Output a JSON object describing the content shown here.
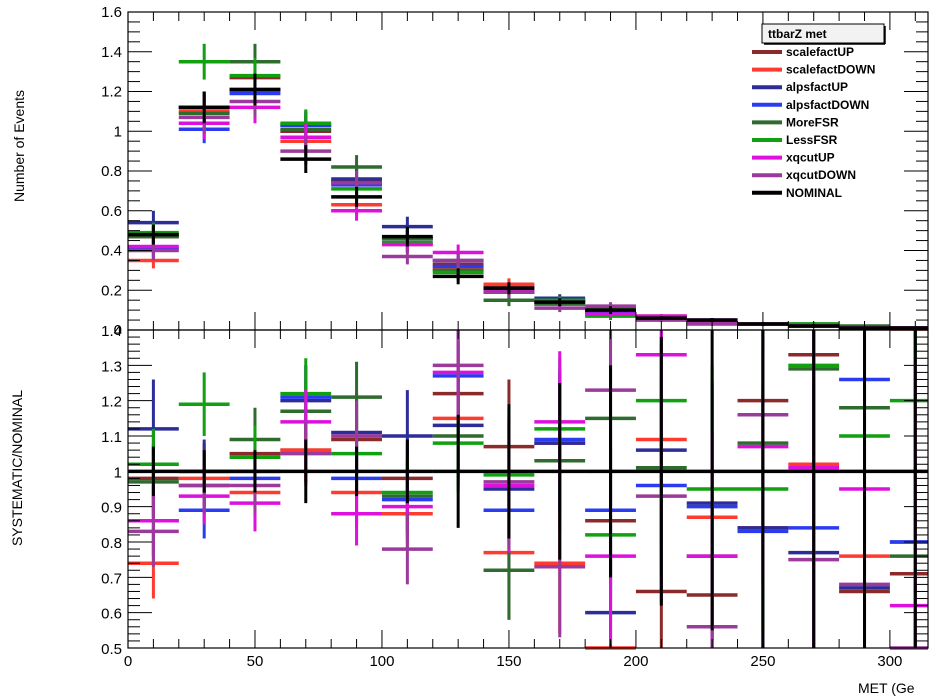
{
  "chart_data": [
    {
      "type": "scatter",
      "panel": "top",
      "ylabel": "Number of Events",
      "ylim": [
        0,
        1.6
      ],
      "yticks": [
        "0",
        "0.2",
        "0.4",
        "0.6",
        "0.8",
        "1",
        "1.2",
        "1.4",
        "1.6"
      ],
      "legend": {
        "title": "ttbarZ met",
        "placement": "top-right",
        "entries": [
          {
            "name": "scalefactUP",
            "color": "#8b2a2a"
          },
          {
            "name": "scalefactDOWN",
            "color": "#ff3b30"
          },
          {
            "name": "alpsfactUP",
            "color": "#2d2d9a"
          },
          {
            "name": "alpsfactDOWN",
            "color": "#2b3cf0"
          },
          {
            "name": "MoreFSR",
            "color": "#2f6b2f"
          },
          {
            "name": "LessFSR",
            "color": "#10a010"
          },
          {
            "name": "xqcutUP",
            "color": "#dd10dd"
          },
          {
            "name": "xqcutDOWN",
            "color": "#9a3a9a"
          },
          {
            "name": "NOMINAL",
            "color": "#000000"
          }
        ]
      },
      "x_bin_centers": [
        10,
        30,
        50,
        70,
        90,
        110,
        130,
        150,
        170,
        190,
        210,
        230,
        250,
        270,
        290,
        310
      ],
      "series": [
        {
          "name": "scalefactUP",
          "color": "#8b2a2a",
          "values": [
            0.47,
            1.12,
            1.27,
            1.0,
            0.75,
            0.46,
            0.33,
            0.22,
            0.15,
            0.1,
            0.07,
            0.05,
            0.03,
            0.02,
            0.01,
            0.01
          ],
          "errors": [
            0.05,
            0.08,
            0.09,
            0.07,
            0.06,
            0.05,
            0.04,
            0.03,
            0.02,
            0.02,
            0.01,
            0.01,
            0.01,
            0.01,
            0.005,
            0.005
          ]
        },
        {
          "name": "scalefactDOWN",
          "color": "#ff3b30",
          "values": [
            0.35,
            1.1,
            1.2,
            0.95,
            0.63,
            0.43,
            0.31,
            0.23,
            0.14,
            0.09,
            0.07,
            0.05,
            0.03,
            0.02,
            0.01,
            0.005
          ],
          "errors": [
            0.04,
            0.08,
            0.08,
            0.07,
            0.05,
            0.04,
            0.04,
            0.03,
            0.02,
            0.02,
            0.01,
            0.01,
            0.01,
            0.01,
            0.005,
            0.005
          ]
        },
        {
          "name": "alpsfactUP",
          "color": "#2d2d9a",
          "values": [
            0.54,
            1.12,
            1.21,
            1.03,
            0.76,
            0.52,
            0.35,
            0.2,
            0.16,
            0.09,
            0.06,
            0.05,
            0.03,
            0.02,
            0.01,
            0.01
          ],
          "errors": [
            0.06,
            0.08,
            0.09,
            0.07,
            0.06,
            0.05,
            0.04,
            0.03,
            0.02,
            0.02,
            0.01,
            0.01,
            0.01,
            0.01,
            0.005,
            0.005
          ]
        },
        {
          "name": "alpsfactDOWN",
          "color": "#2b3cf0",
          "values": [
            0.41,
            1.01,
            1.19,
            1.03,
            0.73,
            0.46,
            0.32,
            0.19,
            0.15,
            0.09,
            0.06,
            0.05,
            0.03,
            0.02,
            0.01,
            0.01
          ],
          "errors": [
            0.05,
            0.07,
            0.08,
            0.07,
            0.05,
            0.04,
            0.04,
            0.03,
            0.02,
            0.02,
            0.01,
            0.01,
            0.01,
            0.01,
            0.005,
            0.005
          ]
        },
        {
          "name": "MoreFSR",
          "color": "#2f6b2f",
          "values": [
            0.47,
            1.09,
            1.35,
            1.01,
            0.82,
            0.46,
            0.3,
            0.15,
            0.13,
            0.11,
            0.06,
            0.04,
            0.03,
            0.03,
            0.02,
            0.01
          ],
          "errors": [
            0.05,
            0.08,
            0.09,
            0.07,
            0.06,
            0.05,
            0.04,
            0.03,
            0.02,
            0.02,
            0.01,
            0.01,
            0.01,
            0.01,
            0.005,
            0.005
          ]
        },
        {
          "name": "LessFSR",
          "color": "#10a010",
          "values": [
            0.49,
            1.35,
            1.28,
            1.04,
            0.71,
            0.44,
            0.29,
            0.19,
            0.15,
            0.07,
            0.06,
            0.04,
            0.03,
            0.03,
            0.01,
            0.01
          ],
          "errors": [
            0.05,
            0.09,
            0.09,
            0.07,
            0.06,
            0.05,
            0.04,
            0.03,
            0.02,
            0.02,
            0.01,
            0.01,
            0.01,
            0.01,
            0.005,
            0.005
          ]
        },
        {
          "name": "xqcutUP",
          "color": "#dd10dd",
          "values": [
            0.42,
            1.04,
            1.12,
            0.97,
            0.6,
            0.43,
            0.39,
            0.2,
            0.14,
            0.08,
            0.07,
            0.04,
            0.03,
            0.02,
            0.01,
            0.01
          ],
          "errors": [
            0.05,
            0.08,
            0.08,
            0.07,
            0.05,
            0.04,
            0.04,
            0.03,
            0.02,
            0.02,
            0.01,
            0.01,
            0.01,
            0.01,
            0.005,
            0.005
          ]
        },
        {
          "name": "xqcutDOWN",
          "color": "#9a3a9a",
          "values": [
            0.4,
            1.07,
            1.15,
            0.9,
            0.74,
            0.37,
            0.35,
            0.19,
            0.11,
            0.12,
            0.05,
            0.03,
            0.03,
            0.02,
            0.01,
            0.01
          ],
          "errors": [
            0.05,
            0.08,
            0.08,
            0.07,
            0.06,
            0.04,
            0.04,
            0.03,
            0.02,
            0.02,
            0.01,
            0.01,
            0.01,
            0.01,
            0.005,
            0.005
          ]
        },
        {
          "name": "NOMINAL",
          "color": "#000000",
          "values": [
            0.48,
            1.12,
            1.21,
            0.86,
            0.67,
            0.47,
            0.27,
            0.21,
            0.14,
            0.1,
            0.06,
            0.05,
            0.03,
            0.02,
            0.01,
            0.01
          ],
          "errors": [
            0.05,
            0.08,
            0.08,
            0.07,
            0.05,
            0.05,
            0.04,
            0.03,
            0.02,
            0.02,
            0.01,
            0.01,
            0.01,
            0.01,
            0.005,
            0.005
          ]
        }
      ]
    },
    {
      "type": "scatter",
      "panel": "bottom",
      "ylabel": "SYSTEMATIC/NOMINAL",
      "xlabel": "MET (Ge",
      "xlim": [
        0,
        315
      ],
      "ylim": [
        0.5,
        1.4
      ],
      "xticks": [
        "0",
        "50",
        "100",
        "150",
        "200",
        "250",
        "300"
      ],
      "yticks": [
        "0.5",
        "0.6",
        "0.7",
        "0.8",
        "0.9",
        "1",
        "1.1",
        "1.2",
        "1.3",
        "1.4"
      ],
      "reference_line": 1,
      "x_bin_centers": [
        10,
        30,
        50,
        70,
        90,
        110,
        130,
        150,
        170,
        190,
        210,
        230,
        250,
        270,
        290,
        310
      ],
      "series": [
        {
          "name": "scalefactUP",
          "color": "#8b2a2a",
          "values": [
            0.98,
            1.0,
            1.05,
            1.06,
            1.09,
            0.98,
            1.22,
            1.07,
            1.08,
            0.86,
            0.66,
            0.65,
            1.2,
            1.33,
            0.66,
            0.71
          ],
          "errors": [
            0.1,
            0.08,
            0.09,
            0.09,
            0.1,
            0.1,
            0.14,
            0.19,
            0.2,
            0.25,
            0.3,
            0.35,
            0.4,
            0.5,
            0.6,
            0.7
          ]
        },
        {
          "name": "scalefactDOWN",
          "color": "#ff3b30",
          "values": [
            0.74,
            0.98,
            0.94,
            1.06,
            0.94,
            0.88,
            1.15,
            0.77,
            0.74,
            0.5,
            1.09,
            0.87,
            0.84,
            1.02,
            0.76,
            0.49
          ],
          "errors": [
            0.1,
            0.08,
            0.09,
            0.09,
            0.1,
            0.1,
            0.14,
            0.19,
            0.2,
            0.25,
            0.3,
            0.35,
            0.4,
            0.5,
            0.6,
            0.7
          ]
        },
        {
          "name": "alpsfactUP",
          "color": "#2d2d9a",
          "values": [
            1.12,
            1.0,
            1.0,
            1.2,
            1.11,
            1.1,
            1.13,
            0.95,
            1.08,
            0.6,
            1.06,
            0.91,
            0.84,
            0.77,
            0.67,
            0.8
          ],
          "errors": [
            0.14,
            0.09,
            0.1,
            0.1,
            0.11,
            0.13,
            0.15,
            0.19,
            0.2,
            0.25,
            0.3,
            0.35,
            0.4,
            0.5,
            0.6,
            0.7
          ]
        },
        {
          "name": "alpsfactDOWN",
          "color": "#2b3cf0",
          "values": [
            0.86,
            0.89,
            0.98,
            1.21,
            0.98,
            0.92,
            1.27,
            0.89,
            1.09,
            0.89,
            0.96,
            0.9,
            0.83,
            0.84,
            1.26,
            0.8
          ],
          "errors": [
            0.1,
            0.08,
            0.09,
            0.09,
            0.1,
            0.1,
            0.14,
            0.19,
            0.2,
            0.25,
            0.3,
            0.35,
            0.4,
            0.5,
            0.6,
            0.7
          ]
        },
        {
          "name": "MoreFSR",
          "color": "#2f6b2f",
          "values": [
            0.97,
            0.96,
            1.09,
            1.17,
            1.21,
            0.93,
            1.1,
            0.72,
            1.03,
            1.15,
            1.01,
            0.76,
            1.08,
            1.29,
            1.18,
            0.76
          ],
          "errors": [
            0.1,
            0.08,
            0.09,
            0.09,
            0.1,
            0.1,
            0.14,
            0.14,
            0.2,
            0.25,
            0.3,
            0.35,
            0.4,
            0.5,
            0.6,
            0.7
          ]
        },
        {
          "name": "LessFSR",
          "color": "#10a010",
          "values": [
            1.02,
            1.19,
            1.04,
            1.22,
            1.05,
            0.94,
            1.08,
            0.99,
            1.12,
            0.82,
            1.2,
            0.95,
            0.95,
            1.3,
            1.1,
            1.2
          ],
          "errors": [
            0.1,
            0.09,
            0.09,
            0.1,
            0.1,
            0.1,
            0.14,
            0.19,
            0.2,
            0.25,
            0.3,
            0.35,
            0.4,
            0.5,
            0.6,
            0.7
          ]
        },
        {
          "name": "xqcutUP",
          "color": "#dd10dd",
          "values": [
            0.86,
            0.93,
            0.91,
            1.14,
            0.88,
            0.9,
            1.28,
            0.96,
            1.14,
            0.76,
            1.33,
            0.76,
            1.07,
            1.01,
            0.95,
            0.62
          ],
          "errors": [
            0.1,
            0.08,
            0.08,
            0.09,
            0.09,
            0.1,
            0.14,
            0.19,
            0.2,
            0.25,
            0.3,
            0.35,
            0.4,
            0.5,
            0.6,
            0.7
          ]
        },
        {
          "name": "xqcutDOWN",
          "color": "#9a3a9a",
          "values": [
            0.83,
            0.96,
            0.96,
            1.05,
            1.1,
            0.78,
            1.3,
            0.97,
            0.73,
            1.23,
            0.93,
            0.56,
            1.16,
            0.75,
            0.68,
            0.5
          ],
          "errors": [
            0.1,
            0.08,
            0.08,
            0.09,
            0.1,
            0.1,
            0.14,
            0.19,
            0.2,
            0.25,
            0.3,
            0.35,
            0.4,
            0.5,
            0.6,
            0.7
          ]
        },
        {
          "name": "NOMINAL",
          "color": "#000000",
          "values": [
            1.0,
            1.0,
            1.0,
            1.0,
            1.0,
            1.0,
            1.0,
            1.0,
            1.0,
            1.0,
            1.0,
            1.0,
            1.0,
            1.0,
            1.0,
            1.0
          ],
          "errors": [
            0.07,
            0.06,
            0.06,
            0.09,
            0.07,
            0.09,
            0.16,
            0.19,
            0.25,
            0.3,
            0.38,
            0.45,
            0.55,
            0.65,
            0.75,
            0.85
          ]
        }
      ]
    }
  ]
}
